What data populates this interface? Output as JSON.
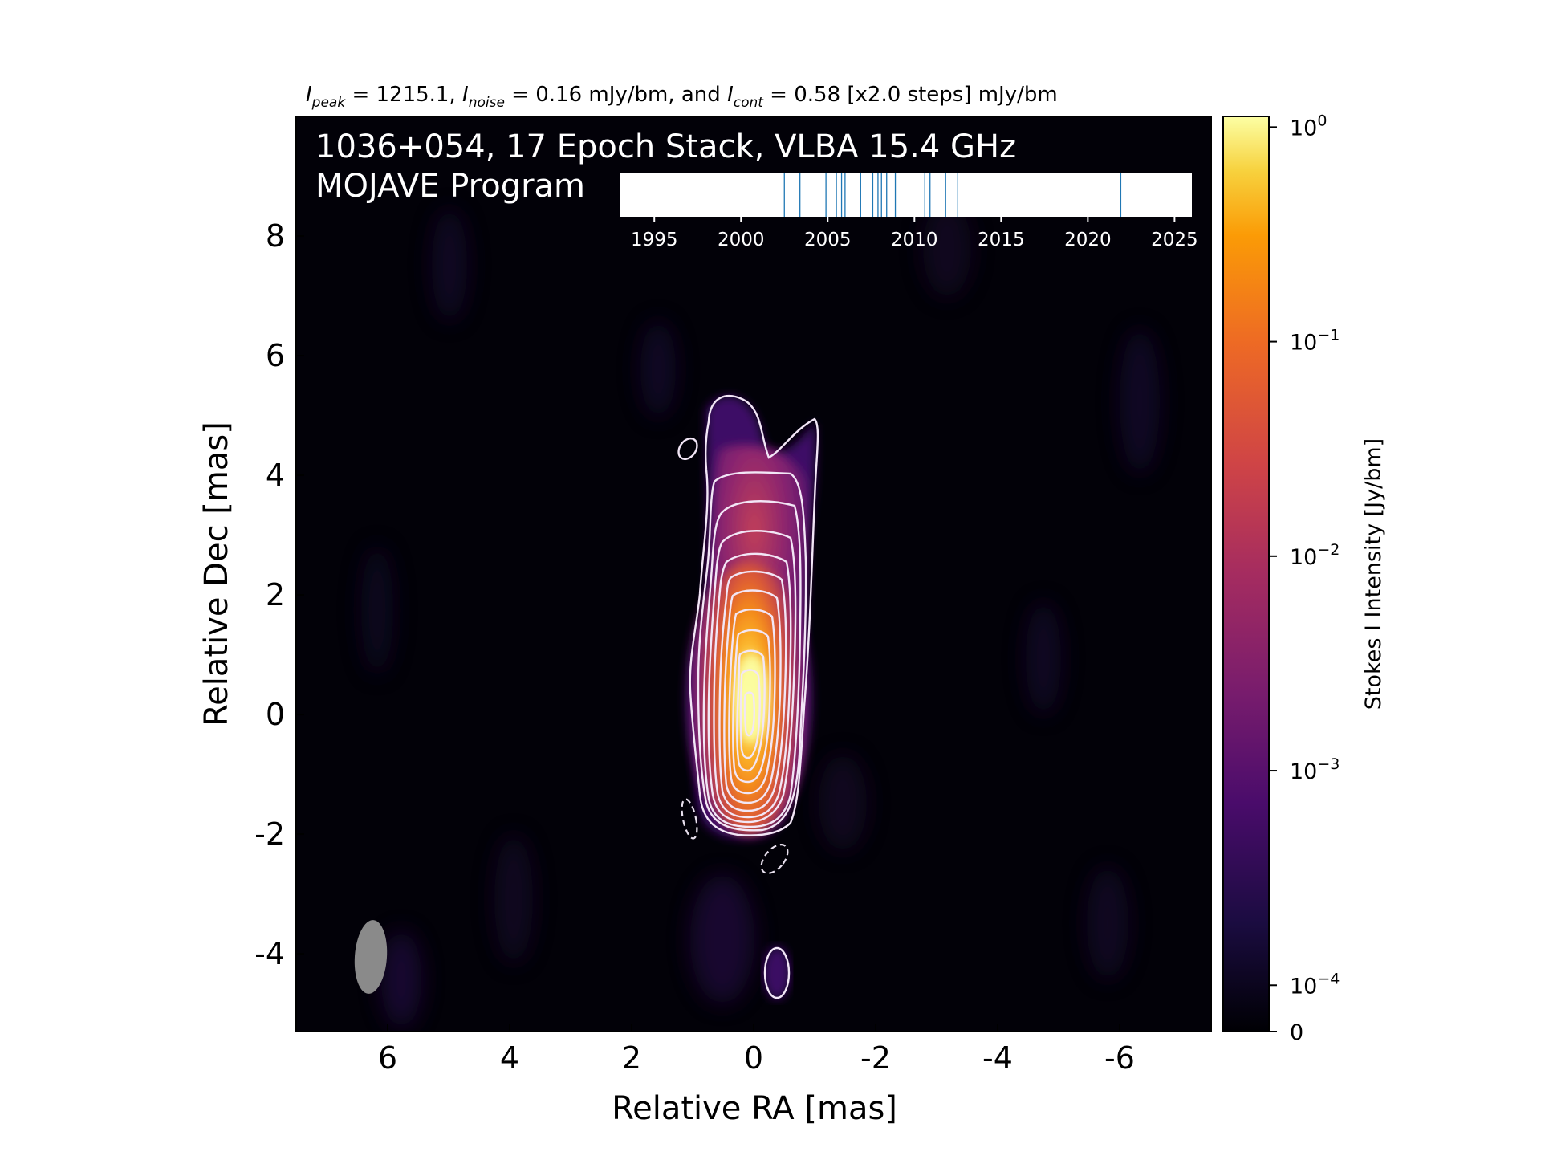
{
  "chart_data": {
    "type": "heatmap",
    "header": {
      "peak_label": "peak",
      "peak_text": " = 1215.1, ",
      "noise_label": "noise",
      "noise_text": " = 0.16 mJy/bm, and ",
      "cont_label": "cont",
      "cont_text": " = 0.58 [x2.0 steps] mJy/bm"
    },
    "title_line1": "1036+054, 17 Epoch Stack, VLBA 15.4 GHz",
    "title_line2": "MOJAVE Program",
    "xlabel": "Relative RA [mas]",
    "ylabel": "Relative Dec [mas]",
    "xlim": [
      7.5,
      -7.5
    ],
    "ylim": [
      -5.3,
      10
    ],
    "x_ticks": [
      6,
      4,
      2,
      0,
      -2,
      -4,
      -6
    ],
    "x_tick_labels": [
      "6",
      "4",
      "2",
      "0",
      "-2",
      "-4",
      "-6"
    ],
    "y_ticks": [
      8,
      6,
      4,
      2,
      0,
      -2,
      -4
    ],
    "y_tick_labels": [
      "8",
      "6",
      "4",
      "2",
      "0",
      "-2",
      "-4"
    ],
    "colorbar": {
      "label": "Stokes I Intensity [Jy/bm]",
      "scale": "log",
      "colormap": "inferno",
      "ticks": [
        1,
        0.1,
        0.01,
        0.001,
        0.0001,
        0
      ],
      "tick_labels": [
        {
          "base": "10",
          "exp": "0"
        },
        {
          "base": "10",
          "exp": "−1"
        },
        {
          "base": "10",
          "exp": "−2"
        },
        {
          "base": "10",
          "exp": "−3"
        },
        {
          "base": "10",
          "exp": "−4"
        },
        {
          "base": "0",
          "exp": ""
        }
      ]
    },
    "epoch_timeline": {
      "xlim": [
        1993,
        2026
      ],
      "ticks": [
        1995,
        2000,
        2005,
        2010,
        2015,
        2020,
        2025
      ],
      "tick_labels": [
        "1995",
        "2000",
        "2005",
        "2010",
        "2015",
        "2020",
        "2025"
      ],
      "epochs": [
        2002.5,
        2003.4,
        2004.9,
        2005.5,
        2005.8,
        2006.0,
        2006.9,
        2007.6,
        2007.9,
        2008.1,
        2008.4,
        2008.9,
        2010.6,
        2010.9,
        2011.8,
        2012.5,
        2021.9
      ],
      "line_color": "#1f77b4"
    },
    "source": {
      "core": {
        "x": 0.0,
        "y": 0.1,
        "peak_jy": 1.2151
      },
      "jet_direction": "north",
      "beam": {
        "x": 6.15,
        "y": -4.1,
        "major_mas": 1.2,
        "minor_mas": 0.5,
        "pa_deg": -5
      }
    },
    "contours": {
      "base_mjy": 0.58,
      "factor": 2.0,
      "color": "#f2e6f6",
      "negative_style": "dashed"
    }
  }
}
